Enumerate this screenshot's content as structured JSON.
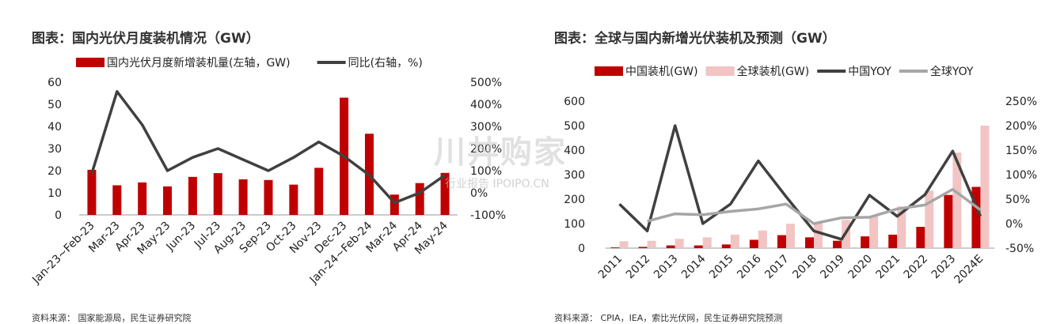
{
  "chart_data": [
    {
      "type": "bar",
      "title": "图表：国内光伏月度装机情况（GW）",
      "source": "资料来源： 国家能源局，民生证券研究院",
      "categories": [
        "Jan-23~Feb-23",
        "Mar-23",
        "Apr-23",
        "May-23",
        "Jun-23",
        "Jul-23",
        "Aug-23",
        "Sep-23",
        "Oct-23",
        "Nov-23",
        "Dec-23",
        "Jan-24~Feb-24",
        "Mar-24",
        "Apr-24",
        "May-24"
      ],
      "series": [
        {
          "name": "国内光伏月度新增装机量(左轴，GW)",
          "type": "bar",
          "axis": "left",
          "color": "#c00000",
          "values": [
            20.4,
            13.4,
            14.7,
            12.9,
            17.2,
            18.9,
            16.1,
            15.8,
            13.7,
            21.3,
            53.0,
            36.7,
            9.2,
            14.4,
            19.0
          ]
        },
        {
          "name": "同比(右轴，%)",
          "type": "line",
          "axis": "right",
          "color": "#404040",
          "values": [
            87,
            458,
            307,
            100,
            160,
            200,
            150,
            100,
            160,
            230,
            165,
            80,
            -45,
            0,
            80
          ]
        }
      ],
      "yleft": {
        "min": 0,
        "max": 60,
        "ticks": [
          "0",
          "10",
          "20",
          "30",
          "40",
          "50",
          "60"
        ]
      },
      "yright": {
        "min": -100,
        "max": 500,
        "ticks": [
          "-100%",
          "0%",
          "100%",
          "200%",
          "300%",
          "400%",
          "500%"
        ]
      },
      "legend_position": "top"
    },
    {
      "type": "bar",
      "title": "图表：全球与国内新增光伏装机及预测（GW）",
      "source": "资料来源： CPIA，IEA，索比光伏网，民生证券研究院预测",
      "categories": [
        "2011",
        "2012",
        "2013",
        "2014",
        "2015",
        "2016",
        "2017",
        "2018",
        "2019",
        "2020",
        "2021",
        "2022",
        "2023",
        "2024E"
      ],
      "series": [
        {
          "name": "中国装机(GW)",
          "type": "bar",
          "axis": "left",
          "color": "#c00000",
          "values": [
            3,
            5,
            11,
            11,
            15,
            34,
            53,
            44,
            30,
            48,
            55,
            87,
            217,
            250
          ]
        },
        {
          "name": "全球装机(GW)",
          "type": "bar",
          "axis": "left",
          "color": "#f2c4c4",
          "values": [
            28,
            30,
            38,
            44,
            55,
            72,
            100,
            105,
            115,
            130,
            170,
            235,
            390,
            500
          ]
        },
        {
          "name": "中国YOY",
          "type": "line",
          "axis": "right",
          "color": "#404040",
          "values": [
            40,
            -15,
            200,
            0,
            40,
            128,
            55,
            -15,
            -32,
            58,
            15,
            59,
            148,
            15
          ]
        },
        {
          "name": "全球YOY",
          "type": "line",
          "axis": "right",
          "color": "#a6a6a6",
          "values": [
            null,
            5,
            20,
            18,
            25,
            30,
            40,
            0,
            12,
            13,
            30,
            38,
            70,
            28
          ]
        }
      ],
      "yleft": {
        "min": 0,
        "max": 600,
        "ticks": [
          "0",
          "100",
          "200",
          "300",
          "400",
          "500",
          "600"
        ]
      },
      "yright": {
        "min": -50,
        "max": 250,
        "ticks": [
          "-50%",
          "0%",
          "50%",
          "100%",
          "150%",
          "200%",
          "250%"
        ]
      },
      "legend_position": "top"
    }
  ],
  "watermark": {
    "main": "川丼购家",
    "sub": "行业报告 IPOIPO.CN"
  }
}
